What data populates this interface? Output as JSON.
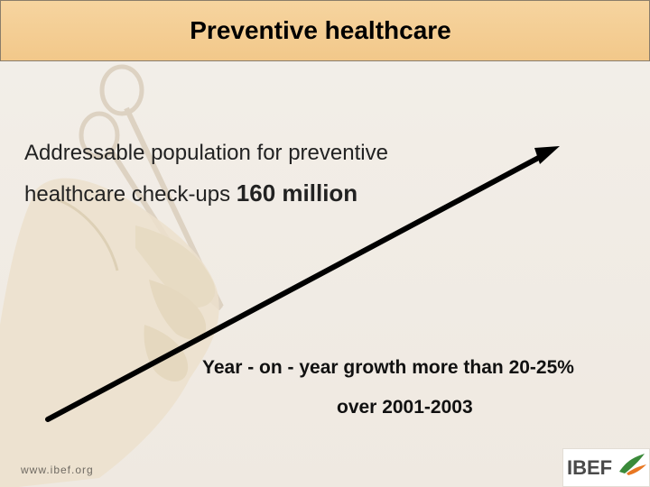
{
  "header": {
    "title": "Preventive healthcare"
  },
  "main": {
    "line1": "Addressable population for preventive",
    "line2_prefix": "healthcare check-ups ",
    "line2_highlight": "160 million",
    "growth_line1": "Year - on - year growth more than 20-25%",
    "growth_line2": "over 2001-2003"
  },
  "footer": {
    "url": "www.ibef.org",
    "logo_text": "IBEF",
    "logo_icon": "ibef-bird-logo"
  },
  "colors": {
    "title_bg": "#f2c88a",
    "background": "#f1ece5",
    "arrow": "#000000",
    "logo_green": "#3a8a3a",
    "logo_orange": "#e87722"
  }
}
